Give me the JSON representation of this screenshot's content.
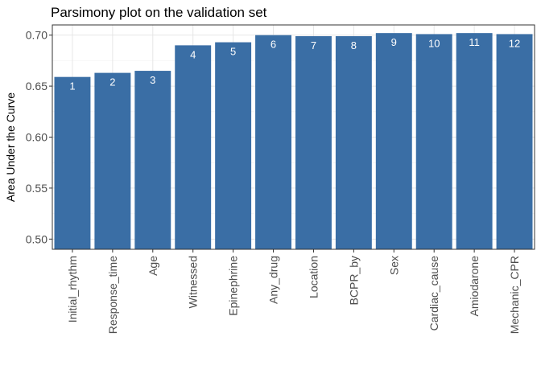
{
  "chart_data": {
    "type": "bar",
    "title": "Parsimony plot on the validation set",
    "xlabel": "",
    "ylabel": "Area Under the Curve",
    "categories": [
      "Initial_rhythm",
      "Response_time",
      "Age",
      "Witnessed",
      "Epinephrine",
      "Any_drug",
      "Location",
      "BCPR_by",
      "Sex",
      "Cardiac_cause",
      "Amiodarone",
      "Mechanic_CPR"
    ],
    "values": [
      0.659,
      0.663,
      0.665,
      0.69,
      0.693,
      0.7,
      0.699,
      0.699,
      0.702,
      0.701,
      0.702,
      0.701
    ],
    "bar_labels": [
      "1",
      "2",
      "3",
      "4",
      "5",
      "6",
      "7",
      "8",
      "9",
      "10",
      "11",
      "12"
    ],
    "ylim": [
      0.49,
      0.71
    ],
    "yticks": [
      0.5,
      0.55,
      0.6,
      0.65,
      0.7
    ],
    "ytick_labels": [
      "0.50",
      "0.55",
      "0.60",
      "0.65",
      "0.70"
    ],
    "grid": true,
    "bar_color": "#3A6EA5"
  }
}
